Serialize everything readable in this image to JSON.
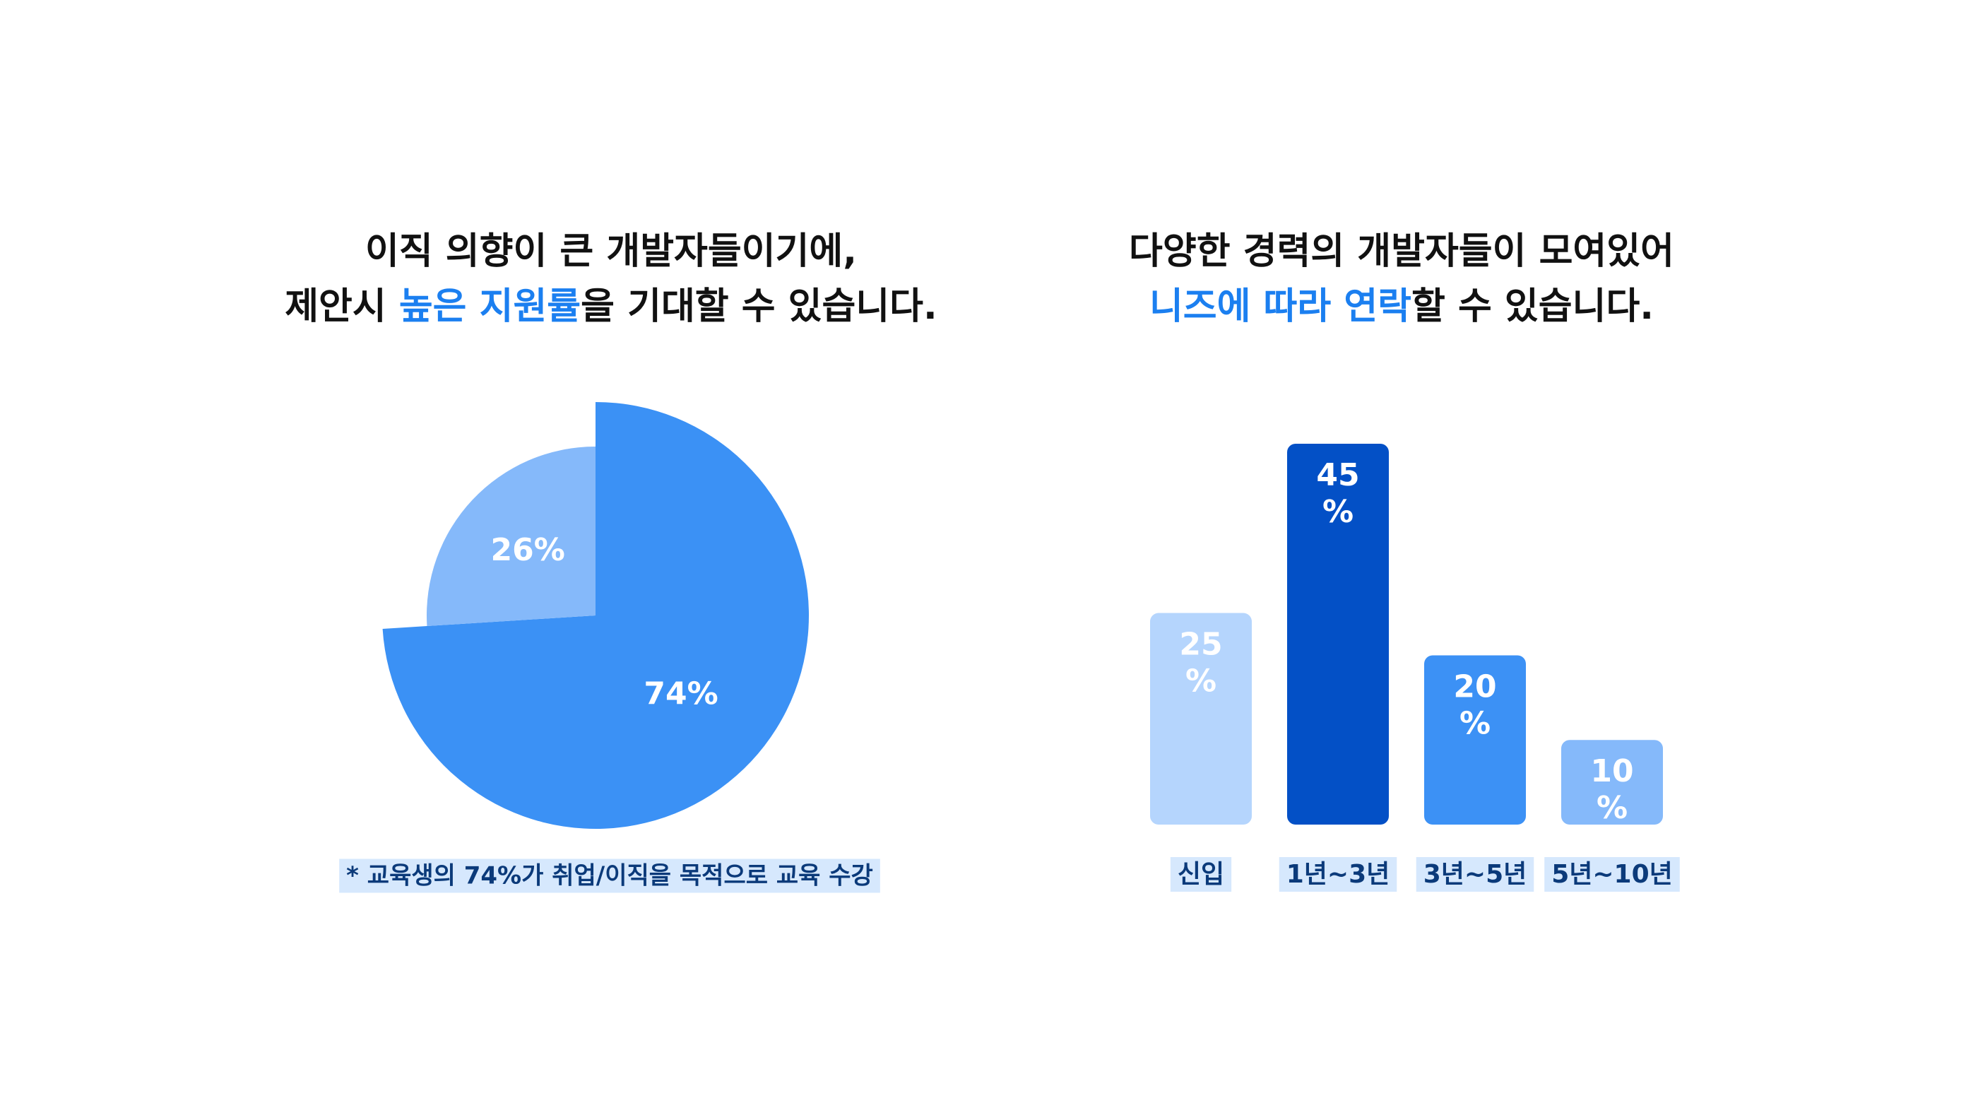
{
  "chart_data": [
    {
      "type": "pie",
      "highlight_color": "#1b7ff0",
      "title_lines": [
        {
          "parts": [
            {
              "text": "이직 의향이 큰 개발자들이기에,",
              "emphasis": false
            }
          ]
        },
        {
          "parts": [
            {
              "text": "제안시 ",
              "emphasis": false
            },
            {
              "text": "높은 지원률",
              "emphasis": true
            },
            {
              "text": "을 기대할 수 있습니다.",
              "emphasis": false
            }
          ]
        }
      ],
      "values": [
        74,
        26
      ],
      "value_labels": [
        "74%",
        "26%"
      ],
      "colors": [
        "#3b91f5",
        "#85b9fa"
      ],
      "footnote": "*  교육생의 74%가 취업/이직을 목적으로 교육 수강"
    },
    {
      "type": "bar",
      "highlight_color": "#1b7ff0",
      "title_lines": [
        {
          "parts": [
            {
              "text": "다양한 경력의 개발자들이 모여있어",
              "emphasis": false
            }
          ]
        },
        {
          "parts": [
            {
              "text": "니즈에 따라 연락",
              "emphasis": true
            },
            {
              "text": "할 수 있습니다.",
              "emphasis": false
            }
          ]
        }
      ],
      "categories": [
        "신입",
        "1년~3년",
        "3년~5년",
        "5년~10년"
      ],
      "values": [
        25,
        45,
        20,
        10
      ],
      "value_labels": [
        "25%",
        "45%",
        "20%",
        "10%"
      ],
      "colors": [
        "#b5d5fd",
        "#0350c6",
        "#3c91f5",
        "#85b9fa"
      ]
    }
  ]
}
